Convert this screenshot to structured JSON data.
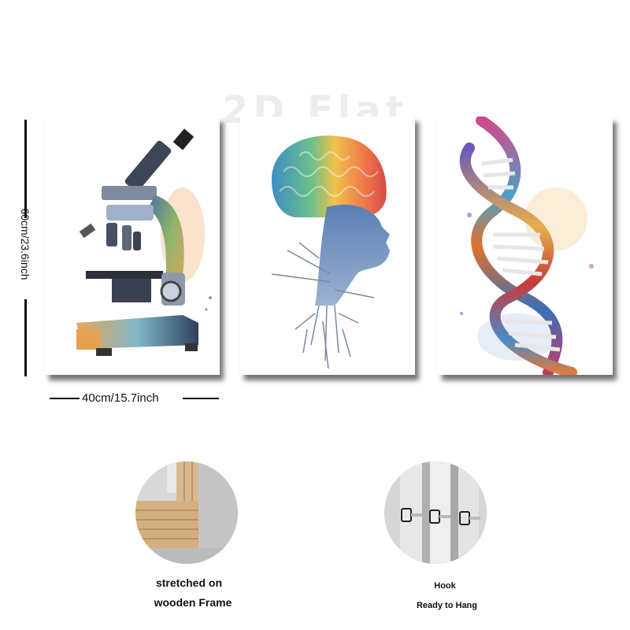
{
  "watermark": "2D Flat",
  "dimensions": {
    "height_label": "60cm/23.6inch",
    "width_label": "40cm/15.7inch"
  },
  "panels": [
    {
      "subject": "microscope"
    },
    {
      "subject": "brain"
    },
    {
      "subject": "dna"
    }
  ],
  "features": {
    "frame": {
      "line1": "stretched on",
      "line2": "wooden Frame"
    },
    "hook": {
      "line1": "Hook",
      "line2": "Ready to Hang"
    }
  }
}
